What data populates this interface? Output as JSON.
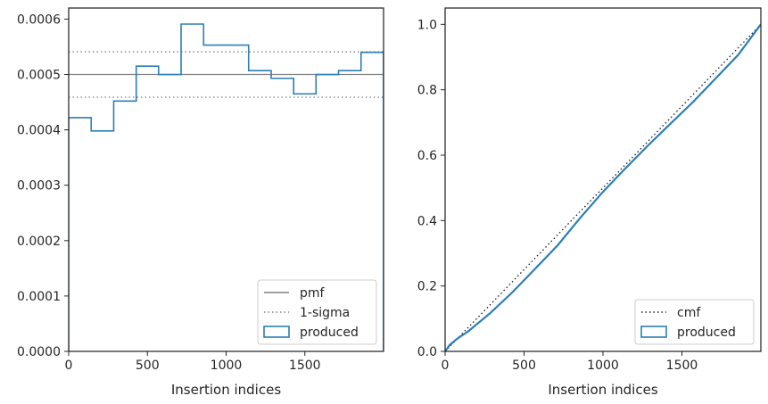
{
  "chart_data": [
    {
      "type": "line",
      "xlabel": "Insertion indices",
      "ylabel": "",
      "xlim": [
        0,
        2000
      ],
      "ylim": [
        0,
        0.00062
      ],
      "xticks": [
        0,
        500,
        1000,
        1500
      ],
      "xtick_labels": [
        "0",
        "500",
        "1000",
        "1500"
      ],
      "yticks": [
        0,
        0.0001,
        0.0002,
        0.0003,
        0.0004,
        0.0005,
        0.0006
      ],
      "ytick_labels": [
        "0.0000",
        "0.0001",
        "0.0002",
        "0.0003",
        "0.0004",
        "0.0005",
        "0.0006"
      ],
      "grid": false,
      "legend_location": "lower right",
      "series": [
        {
          "name": "pmf",
          "style": "solid",
          "color": "#808080",
          "y": 0.0005
        },
        {
          "name": "1-sigma",
          "style": "dotted",
          "color": "#808080",
          "y_values": [
            0.000541,
            0.000459
          ]
        },
        {
          "name": "produced",
          "style": "step-histogram",
          "color": "#2a7fb5",
          "bin_edges": [
            0,
            143,
            286,
            429,
            571,
            714,
            857,
            1000,
            1143,
            1286,
            1429,
            1571,
            1714,
            1857,
            2000
          ],
          "values": [
            0.000422,
            0.000398,
            0.000452,
            0.000515,
            0.0005,
            0.000591,
            0.000553,
            0.000553,
            0.000507,
            0.000493,
            0.000465,
            0.0005,
            0.000507,
            0.00054
          ]
        }
      ]
    },
    {
      "type": "line",
      "xlabel": "Insertion indices",
      "ylabel": "",
      "xlim": [
        0,
        2000
      ],
      "ylim": [
        0,
        1.05
      ],
      "xticks": [
        0,
        500,
        1000,
        1500
      ],
      "xtick_labels": [
        "0",
        "500",
        "1000",
        "1500"
      ],
      "yticks": [
        0,
        0.2,
        0.4,
        0.6,
        0.8,
        1.0
      ],
      "ytick_labels": [
        "0.0",
        "0.2",
        "0.4",
        "0.6",
        "0.8",
        "1.0"
      ],
      "grid": false,
      "legend_location": "lower right",
      "series": [
        {
          "name": "cmf",
          "style": "dotted",
          "color": "#1a1a1a",
          "x": [
            0,
            2000
          ],
          "y": [
            0,
            1.0
          ]
        },
        {
          "name": "produced",
          "style": "step-cumulative",
          "color": "#2a7fb5",
          "x": [
            0,
            30,
            80,
            143,
            286,
            429,
            571,
            714,
            857,
            1000,
            1143,
            1286,
            1429,
            1571,
            1714,
            1857,
            2000
          ],
          "y": [
            0,
            0.02,
            0.04,
            0.06,
            0.117,
            0.182,
            0.253,
            0.325,
            0.409,
            0.488,
            0.56,
            0.63,
            0.697,
            0.763,
            0.835,
            0.907,
            1.0
          ]
        }
      ]
    }
  ]
}
